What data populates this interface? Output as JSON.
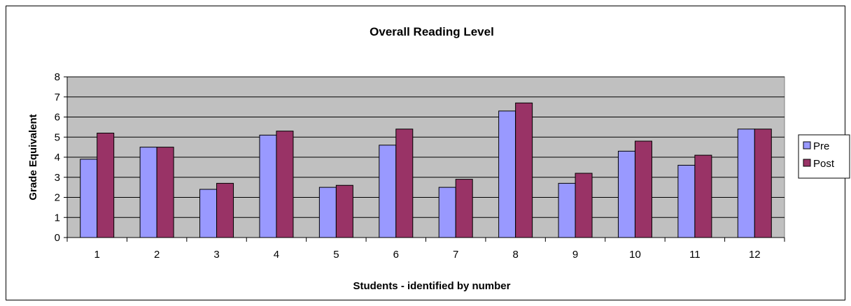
{
  "chart_data": {
    "type": "bar",
    "title": "Overall Reading Level",
    "xlabel": "Students - identified by number",
    "ylabel": "Grade Equivalent",
    "categories": [
      "1",
      "2",
      "3",
      "4",
      "5",
      "6",
      "7",
      "8",
      "9",
      "10",
      "11",
      "12"
    ],
    "series": [
      {
        "name": "Pre",
        "color": "#9999FF",
        "values": [
          3.9,
          4.5,
          2.4,
          5.1,
          2.5,
          4.6,
          2.5,
          6.3,
          2.7,
          4.3,
          3.6,
          5.4
        ]
      },
      {
        "name": "Post",
        "color": "#993366",
        "values": [
          5.2,
          4.5,
          2.7,
          5.3,
          2.6,
          5.4,
          2.9,
          6.7,
          3.2,
          4.8,
          4.1,
          5.4
        ]
      }
    ],
    "ylim": [
      0,
      8
    ],
    "yticks": [
      0,
      1,
      2,
      3,
      4,
      5,
      6,
      7,
      8
    ],
    "grid": true,
    "plot_background": "#C0C0C0",
    "legend_position": "right"
  }
}
